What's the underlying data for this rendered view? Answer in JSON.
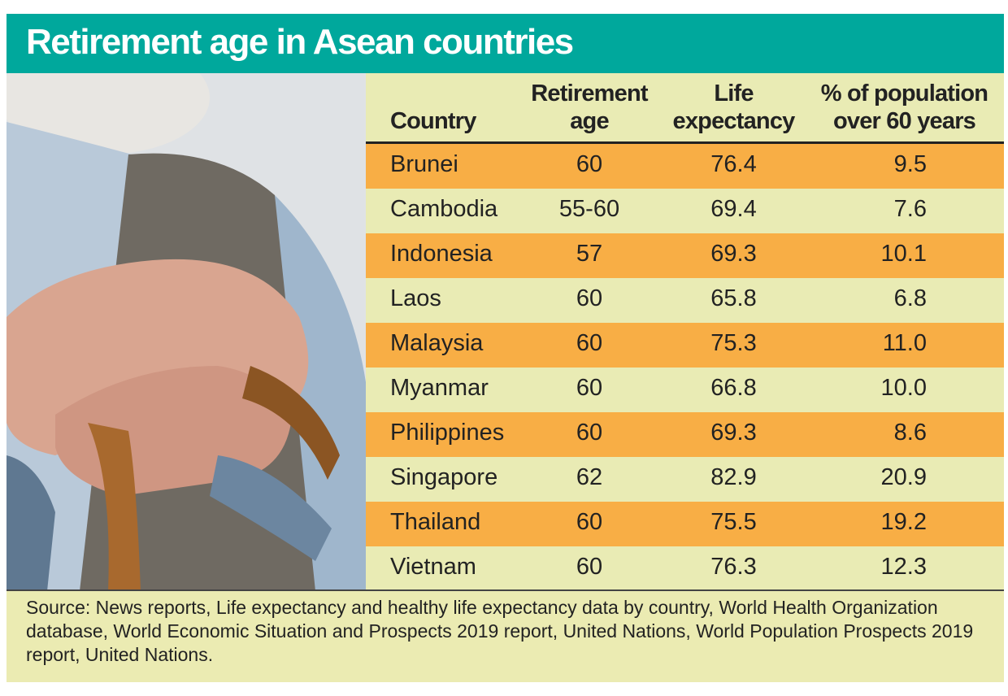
{
  "title": "Retirement age in Asean countries",
  "chart_data": {
    "type": "table",
    "title": "Retirement age in Asean countries",
    "columns": [
      "Country",
      "Retirement age",
      "Life expectancy",
      "% of population over 60 years"
    ],
    "header_lines": [
      [
        "Country"
      ],
      [
        "Retirement",
        "age"
      ],
      [
        "Life",
        "expectancy"
      ],
      [
        "% of population",
        "over 60 years"
      ]
    ],
    "rows": [
      [
        "Brunei",
        "60",
        "76.4",
        "9.5"
      ],
      [
        "Cambodia",
        "55-60",
        "69.4",
        "7.6"
      ],
      [
        "Indonesia",
        "57",
        "69.3",
        "10.1"
      ],
      [
        "Laos",
        "60",
        "65.8",
        "6.8"
      ],
      [
        "Malaysia",
        "60",
        "75.3",
        "11.0"
      ],
      [
        "Myanmar",
        "60",
        "66.8",
        "10.0"
      ],
      [
        "Philippines",
        "60",
        "69.3",
        "8.6"
      ],
      [
        "Singapore",
        "62",
        "82.9",
        "20.9"
      ],
      [
        "Thailand",
        "60",
        "75.5",
        "19.2"
      ],
      [
        "Vietnam",
        "60",
        "76.3",
        "12.3"
      ]
    ]
  },
  "source": "Source: News reports, Life expectancy and healthy life expectancy data by country, World Health Organization database, World Economic Situation and Prospects 2019 report, United Nations, World Population Prospects 2019 report, United Nations.",
  "colors": {
    "title_bar": "#00a89c",
    "row_alt": "#f8ae45",
    "row_base": "#e9ebb4"
  }
}
